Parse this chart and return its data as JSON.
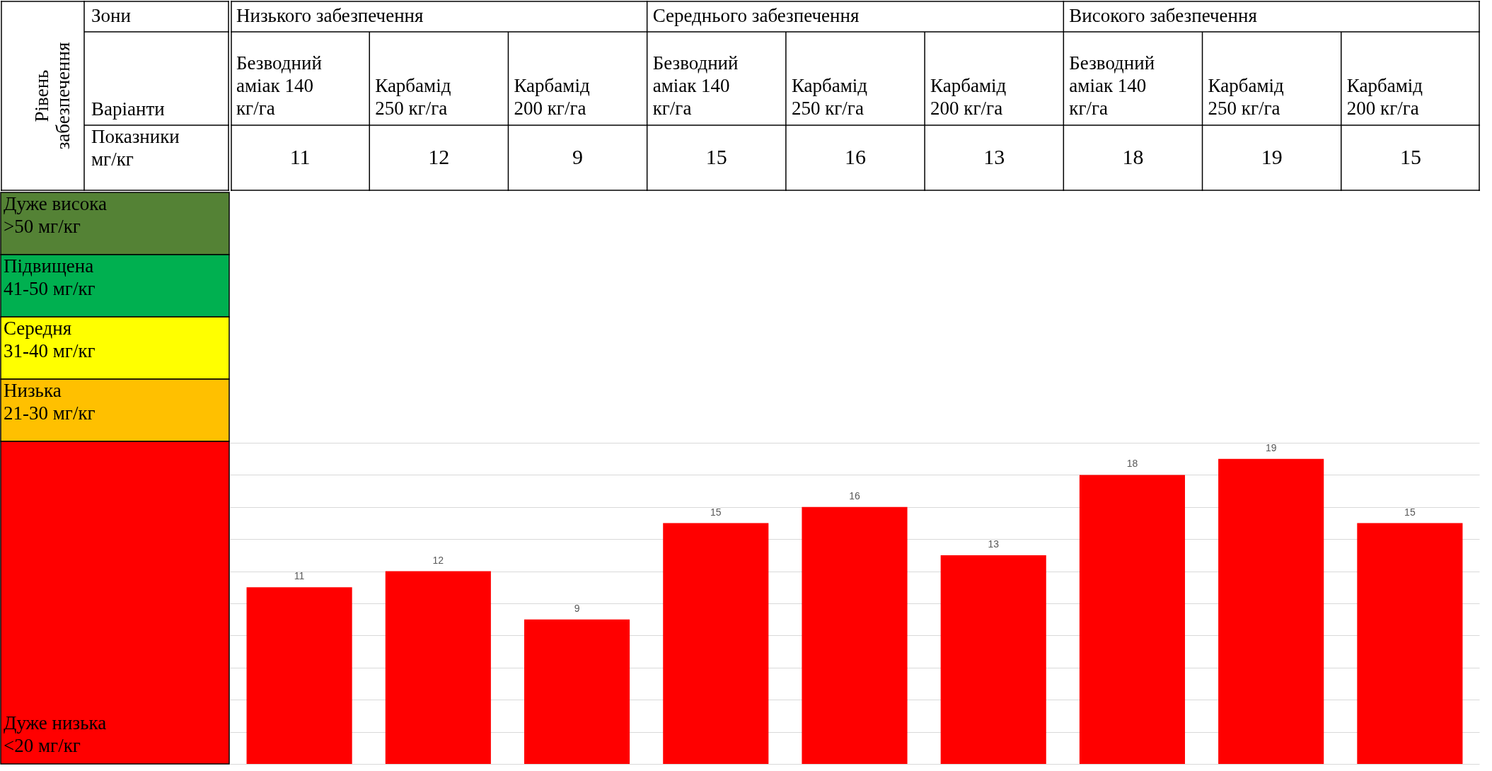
{
  "chart_data": [
    {
      "type": "other",
      "title": "Рівень забезпечення",
      "categories": [
        "Дуже висока >50 мг/кг",
        "Підвищена 41-50 мг/кг",
        "Середня 31-40 мг/кг",
        "Низька 21-30 мг/кг",
        "Дуже низька <20 мг/кг"
      ],
      "colors": [
        "#548235",
        "#00b050",
        "#ffff00",
        "#ffc000",
        "#ff0000"
      ]
    },
    {
      "type": "bar",
      "categories": [
        "Безводний аміак 140 кг/га",
        "Карбамід 250 кг/га",
        "Карбамід 200 кг/га",
        "Безводний аміак 140 кг/га",
        "Карбамід 250 кг/га",
        "Карбамід 200 кг/га",
        "Безводний аміак 140 кг/га",
        "Карбамід 250 кг/га",
        "Карбамід 200 кг/га"
      ],
      "values": [
        11,
        12,
        9,
        15,
        16,
        13,
        18,
        19,
        15
      ],
      "color": "#ff0000",
      "value_labels": [
        "11",
        "12",
        "9",
        "15",
        "16",
        "13",
        "18",
        "19",
        "15"
      ],
      "ylim": [
        0,
        20
      ],
      "grid": "y",
      "tick_labels": false,
      "annotations": [
        "Зони",
        "Варіанти",
        "Показники мг/кг",
        "Низького забезпечення",
        "Середнього забезпечення",
        "Високого забезпечення",
        "11",
        "12",
        "9",
        "15",
        "16",
        "13",
        "18",
        "19",
        "15"
      ]
    }
  ]
}
